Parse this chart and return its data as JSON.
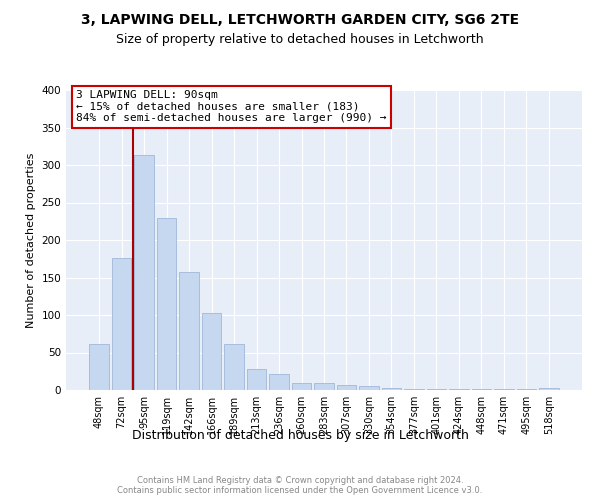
{
  "title": "3, LAPWING DELL, LETCHWORTH GARDEN CITY, SG6 2TE",
  "subtitle": "Size of property relative to detached houses in Letchworth",
  "xlabel": "Distribution of detached houses by size in Letchworth",
  "ylabel": "Number of detached properties",
  "bar_labels": [
    "48sqm",
    "72sqm",
    "95sqm",
    "119sqm",
    "142sqm",
    "166sqm",
    "189sqm",
    "213sqm",
    "236sqm",
    "260sqm",
    "283sqm",
    "307sqm",
    "330sqm",
    "354sqm",
    "377sqm",
    "401sqm",
    "424sqm",
    "448sqm",
    "471sqm",
    "495sqm",
    "518sqm"
  ],
  "bar_values": [
    62,
    176,
    313,
    229,
    158,
    103,
    61,
    28,
    22,
    10,
    10,
    7,
    5,
    3,
    2,
    2,
    2,
    1,
    1,
    1,
    3
  ],
  "bar_color": "#c5d8f0",
  "bar_edgecolor": "#a0b8d8",
  "vline_index": 2,
  "vline_color": "#aa0000",
  "annotation_line1": "3 LAPWING DELL: 90sqm",
  "annotation_line2": "← 15% of detached houses are smaller (183)",
  "annotation_line3": "84% of semi-detached houses are larger (990) →",
  "annotation_box_facecolor": "white",
  "annotation_box_edgecolor": "#cc0000",
  "ylim": [
    0,
    400
  ],
  "yticks": [
    0,
    50,
    100,
    150,
    200,
    250,
    300,
    350,
    400
  ],
  "bg_color": "#e8eef8",
  "title_fontsize": 10,
  "subtitle_fontsize": 9,
  "footer": "Contains HM Land Registry data © Crown copyright and database right 2024.\nContains public sector information licensed under the Open Government Licence v3.0."
}
